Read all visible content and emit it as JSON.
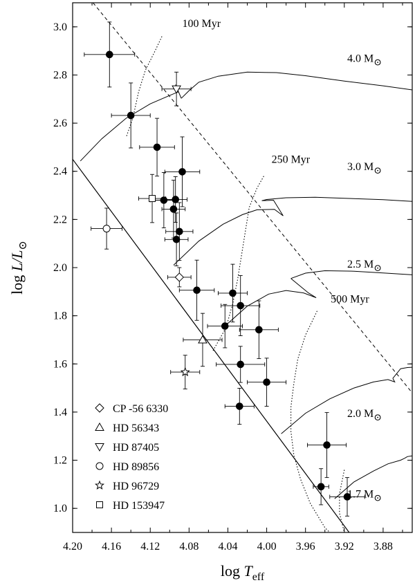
{
  "chart_data": {
    "type": "scatter",
    "title": "",
    "xlabel": {
      "main": "log ",
      "italic": "T",
      "sub": "eff"
    },
    "ylabel": {
      "main": "log ",
      "italic": "L/L",
      "sub": "⊙"
    },
    "xlim": [
      4.2,
      3.85
    ],
    "ylim": [
      0.9,
      3.1
    ],
    "x_inverted": true,
    "x_ticks": [
      "4.20",
      "4.16",
      "4.12",
      "4.08",
      "4.04",
      "4.00",
      "3.96",
      "3.92",
      "3.88"
    ],
    "y_ticks": [
      "1.0",
      "1.2",
      "1.4",
      "1.6",
      "1.8",
      "2.0",
      "2.2",
      "2.4",
      "2.6",
      "2.8",
      "3.0"
    ],
    "grid": false,
    "legend_position": "bottom-left",
    "filled_points": [
      {
        "x": 4.162,
        "y": 2.885,
        "xerr": 0.026,
        "yerr": 0.135
      },
      {
        "x": 4.14,
        "y": 2.632,
        "xerr": 0.02,
        "yerr": 0.135
      },
      {
        "x": 4.113,
        "y": 2.5,
        "xerr": 0.018,
        "yerr": 0.12
      },
      {
        "x": 4.087,
        "y": 2.398,
        "xerr": 0.018,
        "yerr": 0.145
      },
      {
        "x": 4.106,
        "y": 2.28,
        "xerr": 0.014,
        "yerr": 0.115
      },
      {
        "x": 4.094,
        "y": 2.283,
        "xerr": 0.012,
        "yerr": 0.095
      },
      {
        "x": 4.096,
        "y": 2.243,
        "xerr": 0.012,
        "yerr": 0.12
      },
      {
        "x": 4.09,
        "y": 2.15,
        "xerr": 0.014,
        "yerr": 0.12
      },
      {
        "x": 4.093,
        "y": 2.117,
        "xerr": 0.012,
        "yerr": 0.11
      },
      {
        "x": 4.072,
        "y": 1.906,
        "xerr": 0.018,
        "yerr": 0.125
      },
      {
        "x": 4.035,
        "y": 1.894,
        "xerr": 0.015,
        "yerr": 0.12
      },
      {
        "x": 4.027,
        "y": 1.842,
        "xerr": 0.02,
        "yerr": 0.125
      },
      {
        "x": 4.043,
        "y": 1.757,
        "xerr": 0.018,
        "yerr": 0.09
      },
      {
        "x": 4.008,
        "y": 1.742,
        "xerr": 0.02,
        "yerr": 0.12
      },
      {
        "x": 4.027,
        "y": 1.598,
        "xerr": 0.025,
        "yerr": 0.075
      },
      {
        "x": 4.0,
        "y": 1.524,
        "xerr": 0.02,
        "yerr": 0.1
      },
      {
        "x": 4.028,
        "y": 1.424,
        "xerr": 0.015,
        "yerr": 0.075
      },
      {
        "x": 3.938,
        "y": 1.263,
        "xerr": 0.02,
        "yerr": 0.135
      },
      {
        "x": 3.944,
        "y": 1.09,
        "xerr": 0.008,
        "yerr": 0.075
      },
      {
        "x": 3.917,
        "y": 1.048,
        "xerr": 0.018,
        "yerr": 0.08
      }
    ],
    "labeled_points": [
      {
        "star": "CP -56 6330",
        "marker": "diamond",
        "x": 4.09,
        "y": 1.96,
        "xerr": 0.012,
        "yerr": 0.04
      },
      {
        "star": "HD 56343",
        "marker": "triangle-up",
        "x": 4.066,
        "y": 1.7,
        "xerr": 0.02,
        "yerr": 0.11
      },
      {
        "star": "HD 87405",
        "marker": "triangle-down",
        "x": 4.093,
        "y": 2.742,
        "xerr": 0.015,
        "yerr": 0.07
      },
      {
        "star": "HD 89856",
        "marker": "circle",
        "x": 4.165,
        "y": 2.162,
        "xerr": 0.016,
        "yerr": 0.085
      },
      {
        "star": "HD 96729",
        "marker": "star",
        "x": 4.084,
        "y": 1.566,
        "xerr": 0.015,
        "yerr": 0.07
      },
      {
        "star": "HD 153947",
        "marker": "square",
        "x": 4.118,
        "y": 2.287,
        "xerr": 0.014,
        "yerr": 0.1
      }
    ],
    "zams_line": [
      [
        4.2,
        2.45
      ],
      [
        3.915,
        0.9
      ]
    ],
    "tams_line": [
      [
        4.179,
        3.1
      ],
      [
        3.85,
        1.48
      ]
    ],
    "tracks": [
      {
        "mass": "4.0",
        "points": [
          [
            4.088,
            2.703
          ],
          [
            4.08,
            2.735
          ],
          [
            4.07,
            2.77
          ],
          [
            4.05,
            2.795
          ],
          [
            4.02,
            2.812
          ],
          [
            3.99,
            2.81
          ],
          [
            3.96,
            2.797
          ],
          [
            3.92,
            2.775
          ],
          [
            3.88,
            2.755
          ],
          [
            3.85,
            2.738
          ]
        ],
        "pre": [
          [
            4.192,
            2.443
          ],
          [
            4.17,
            2.535
          ],
          [
            4.145,
            2.62
          ],
          [
            4.12,
            2.68
          ],
          [
            4.1,
            2.715
          ],
          [
            4.091,
            2.73
          ],
          [
            4.094,
            2.76
          ],
          [
            4.088,
            2.703
          ]
        ]
      },
      {
        "mass": "3.0",
        "points": [
          [
            4.005,
            2.278
          ],
          [
            4.0,
            2.283
          ],
          [
            3.98,
            2.29
          ],
          [
            3.95,
            2.292
          ],
          [
            3.92,
            2.288
          ],
          [
            3.88,
            2.282
          ],
          [
            3.85,
            2.275
          ]
        ],
        "pre": [
          [
            4.096,
            2.01
          ],
          [
            4.07,
            2.11
          ],
          [
            4.045,
            2.18
          ],
          [
            4.025,
            2.22
          ],
          [
            4.01,
            2.24
          ],
          [
            3.992,
            2.242
          ],
          [
            3.983,
            2.215
          ],
          [
            3.993,
            2.28
          ],
          [
            4.005,
            2.278
          ]
        ]
      },
      {
        "mass": "2.5",
        "points": [
          [
            3.975,
            1.955
          ],
          [
            3.96,
            1.977
          ],
          [
            3.94,
            1.987
          ],
          [
            3.91,
            1.985
          ],
          [
            3.88,
            1.978
          ],
          [
            3.85,
            1.97
          ]
        ],
        "pre": [
          [
            4.045,
            1.75
          ],
          [
            4.02,
            1.84
          ],
          [
            3.998,
            1.89
          ],
          [
            3.98,
            1.905
          ],
          [
            3.962,
            1.895
          ],
          [
            3.949,
            1.875
          ],
          [
            3.957,
            1.895
          ],
          [
            3.975,
            1.955
          ]
        ]
      },
      {
        "mass": "2.0",
        "points": [
          [
            3.87,
            1.54
          ],
          [
            3.862,
            1.58
          ],
          [
            3.855,
            1.585
          ],
          [
            3.85,
            1.586
          ]
        ],
        "pre": [
          [
            3.985,
            1.31
          ],
          [
            3.96,
            1.395
          ],
          [
            3.935,
            1.455
          ],
          [
            3.91,
            1.5
          ],
          [
            3.89,
            1.525
          ],
          [
            3.875,
            1.535
          ],
          [
            3.868,
            1.525
          ],
          [
            3.87,
            1.54
          ]
        ]
      },
      {
        "mass": "1.7",
        "points": [
          [
            3.858,
            1.208
          ],
          [
            3.855,
            1.215
          ],
          [
            3.85,
            1.218
          ]
        ],
        "pre": [
          [
            3.93,
            1.04
          ],
          [
            3.91,
            1.11
          ],
          [
            3.89,
            1.155
          ],
          [
            3.875,
            1.185
          ],
          [
            3.862,
            1.2
          ],
          [
            3.858,
            1.208
          ]
        ]
      }
    ],
    "isochrones": [
      {
        "label": "100 Myr",
        "points": [
          [
            4.108,
            2.96
          ],
          [
            4.115,
            2.9
          ],
          [
            4.125,
            2.82
          ],
          [
            4.132,
            2.73
          ],
          [
            4.138,
            2.62
          ],
          [
            4.145,
            2.54
          ]
        ]
      },
      {
        "label": "250 Myr",
        "points": [
          [
            4.003,
            2.38
          ],
          [
            4.01,
            2.33
          ],
          [
            4.018,
            2.25
          ],
          [
            4.022,
            2.15
          ],
          [
            4.026,
            2.05
          ],
          [
            4.03,
            1.95
          ],
          [
            4.035,
            1.85
          ],
          [
            4.042,
            1.75
          ],
          [
            4.056,
            1.65
          ]
        ]
      },
      {
        "label": "500 Myr",
        "points": [
          [
            3.948,
            1.82
          ],
          [
            3.96,
            1.72
          ],
          [
            3.968,
            1.62
          ],
          [
            3.972,
            1.52
          ],
          [
            3.975,
            1.42
          ],
          [
            3.975,
            1.32
          ],
          [
            3.972,
            1.22
          ],
          [
            3.965,
            1.12
          ],
          [
            3.955,
            1.02
          ],
          [
            3.94,
            0.92
          ],
          [
            3.935,
            0.9
          ]
        ]
      },
      {
        "label": "",
        "points": [
          [
            3.92,
            1.16
          ],
          [
            3.925,
            1.06
          ],
          [
            3.925,
            0.98
          ],
          [
            3.92,
            0.9
          ]
        ]
      }
    ],
    "annotations": [
      {
        "text": "100 Myr",
        "x": 4.087,
        "y": 3.0
      },
      {
        "text": "250 Myr",
        "x": 3.995,
        "y": 2.435
      },
      {
        "text": "500 Myr",
        "x": 3.934,
        "y": 1.855
      },
      {
        "text": "4.0 M",
        "sub": "⊙",
        "x": 3.917,
        "y": 2.855
      },
      {
        "text": "3.0 M",
        "sub": "⊙",
        "x": 3.917,
        "y": 2.405
      },
      {
        "text": "2.5 M",
        "sub": "⊙",
        "x": 3.917,
        "y": 2.0
      },
      {
        "text": "2.0 M",
        "sub": "⊙",
        "x": 3.917,
        "y": 1.38
      },
      {
        "text": "1.7 M",
        "sub": "⊙",
        "x": 3.917,
        "y": 1.045
      }
    ]
  }
}
